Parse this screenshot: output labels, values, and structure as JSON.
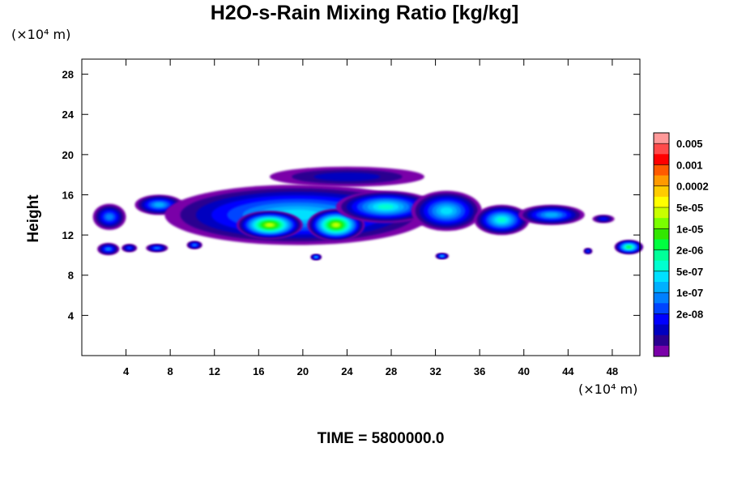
{
  "chart_data": {
    "type": "heatmap",
    "title": "H2O-s-Rain Mixing Ratio [kg/kg]",
    "ylabel": "Height",
    "x_unit": "(×10⁴ m)",
    "y_unit": "(×10⁴ m)",
    "xlim": [
      0,
      50.5
    ],
    "ylim": [
      0,
      29.5
    ],
    "x_ticks": [
      4,
      8,
      12,
      16,
      20,
      24,
      28,
      32,
      36,
      40,
      44,
      48
    ],
    "y_ticks": [
      4,
      8,
      12,
      16,
      20,
      24,
      28
    ],
    "time_label": "TIME = 5800000.0",
    "colorbar": {
      "labels": [
        "0.005",
        "0.001",
        "0.0002",
        "5e-05",
        "1e-05",
        "2e-06",
        "5e-07",
        "1e-07",
        "2e-08"
      ],
      "colors_top_to_bottom": [
        "#ff9999",
        "#ff4a4a",
        "#ff0000",
        "#ff5a00",
        "#ff9a00",
        "#ffcc00",
        "#ffff00",
        "#c8ff00",
        "#7aff00",
        "#32e600",
        "#00ff40",
        "#00ff99",
        "#00ffd0",
        "#00e0ff",
        "#00b0ff",
        "#0080ff",
        "#0044ff",
        "#0000ff",
        "#0000c0",
        "#2a0090",
        "#7a00a8"
      ]
    },
    "blobs": [
      {
        "x": 2.5,
        "y": 13.8,
        "rx": 1.5,
        "ry": 1.3,
        "level": 5
      },
      {
        "x": 2.4,
        "y": 10.6,
        "rx": 1.0,
        "ry": 0.6,
        "level": 5
      },
      {
        "x": 4.3,
        "y": 10.7,
        "rx": 0.7,
        "ry": 0.4,
        "level": 4
      },
      {
        "x": 6.8,
        "y": 10.7,
        "rx": 1.0,
        "ry": 0.4,
        "level": 5
      },
      {
        "x": 10.2,
        "y": 11.0,
        "rx": 0.7,
        "ry": 0.4,
        "level": 5
      },
      {
        "x": 7.0,
        "y": 15.0,
        "rx": 2.2,
        "ry": 1.0,
        "level": 6
      },
      {
        "x": 19.5,
        "y": 14.0,
        "rx": 12.0,
        "ry": 3.0,
        "level": 7
      },
      {
        "x": 17.0,
        "y": 13.0,
        "rx": 3.0,
        "ry": 1.4,
        "level": 13
      },
      {
        "x": 23.0,
        "y": 13.0,
        "rx": 2.6,
        "ry": 1.6,
        "level": 13
      },
      {
        "x": 27.5,
        "y": 14.8,
        "rx": 4.5,
        "ry": 1.6,
        "level": 8
      },
      {
        "x": 33.0,
        "y": 14.4,
        "rx": 3.2,
        "ry": 2.0,
        "level": 7
      },
      {
        "x": 38.0,
        "y": 13.5,
        "rx": 2.5,
        "ry": 1.5,
        "level": 8
      },
      {
        "x": 42.5,
        "y": 14.0,
        "rx": 3.0,
        "ry": 1.0,
        "level": 6
      },
      {
        "x": 47.2,
        "y": 13.6,
        "rx": 1.0,
        "ry": 0.4,
        "level": 3
      },
      {
        "x": 49.5,
        "y": 10.8,
        "rx": 1.3,
        "ry": 0.7,
        "level": 10
      },
      {
        "x": 21.2,
        "y": 9.8,
        "rx": 0.5,
        "ry": 0.3,
        "level": 6
      },
      {
        "x": 32.6,
        "y": 9.9,
        "rx": 0.6,
        "ry": 0.3,
        "level": 6
      },
      {
        "x": 45.8,
        "y": 10.4,
        "rx": 0.4,
        "ry": 0.3,
        "level": 4
      },
      {
        "x": 24.0,
        "y": 17.8,
        "rx": 7.0,
        "ry": 1.0,
        "level": 2
      }
    ]
  }
}
